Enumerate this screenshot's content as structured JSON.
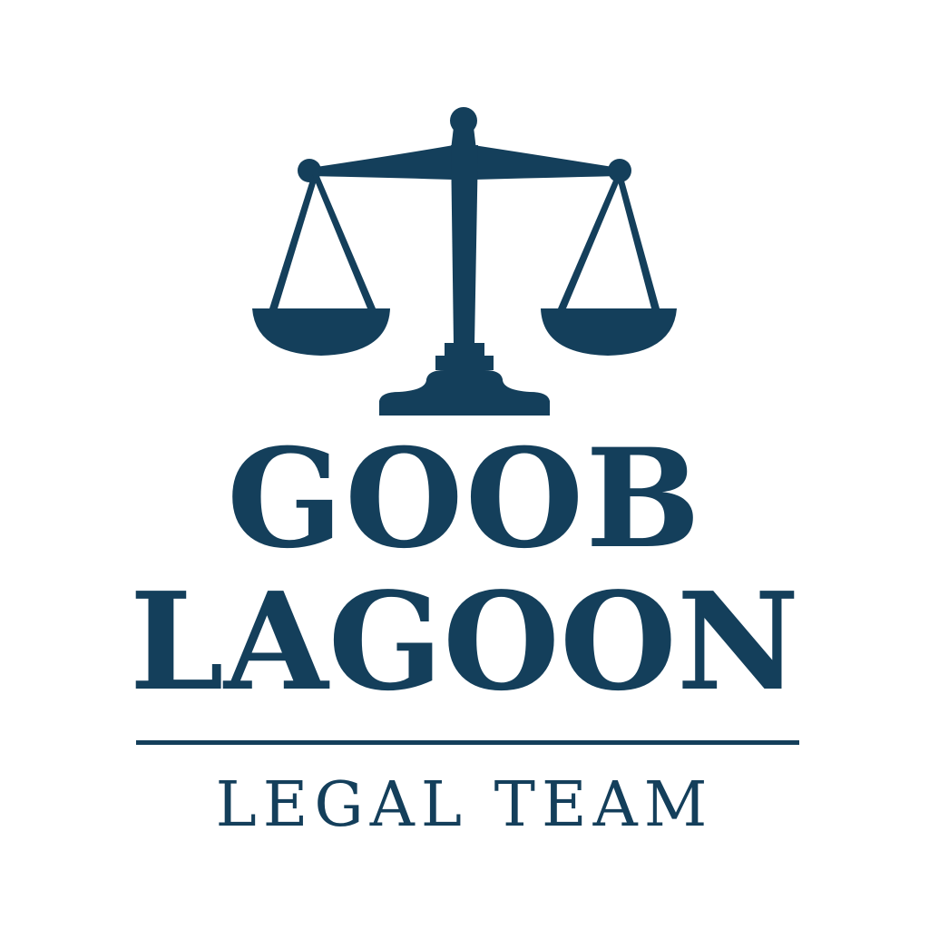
{
  "logo": {
    "line1": "GOOB",
    "line2": "LAGOON",
    "tagline": "LEGAL TEAM",
    "color": "#143f5b",
    "background": "#ffffff",
    "emblem_icon": "scales-of-justice-icon"
  }
}
